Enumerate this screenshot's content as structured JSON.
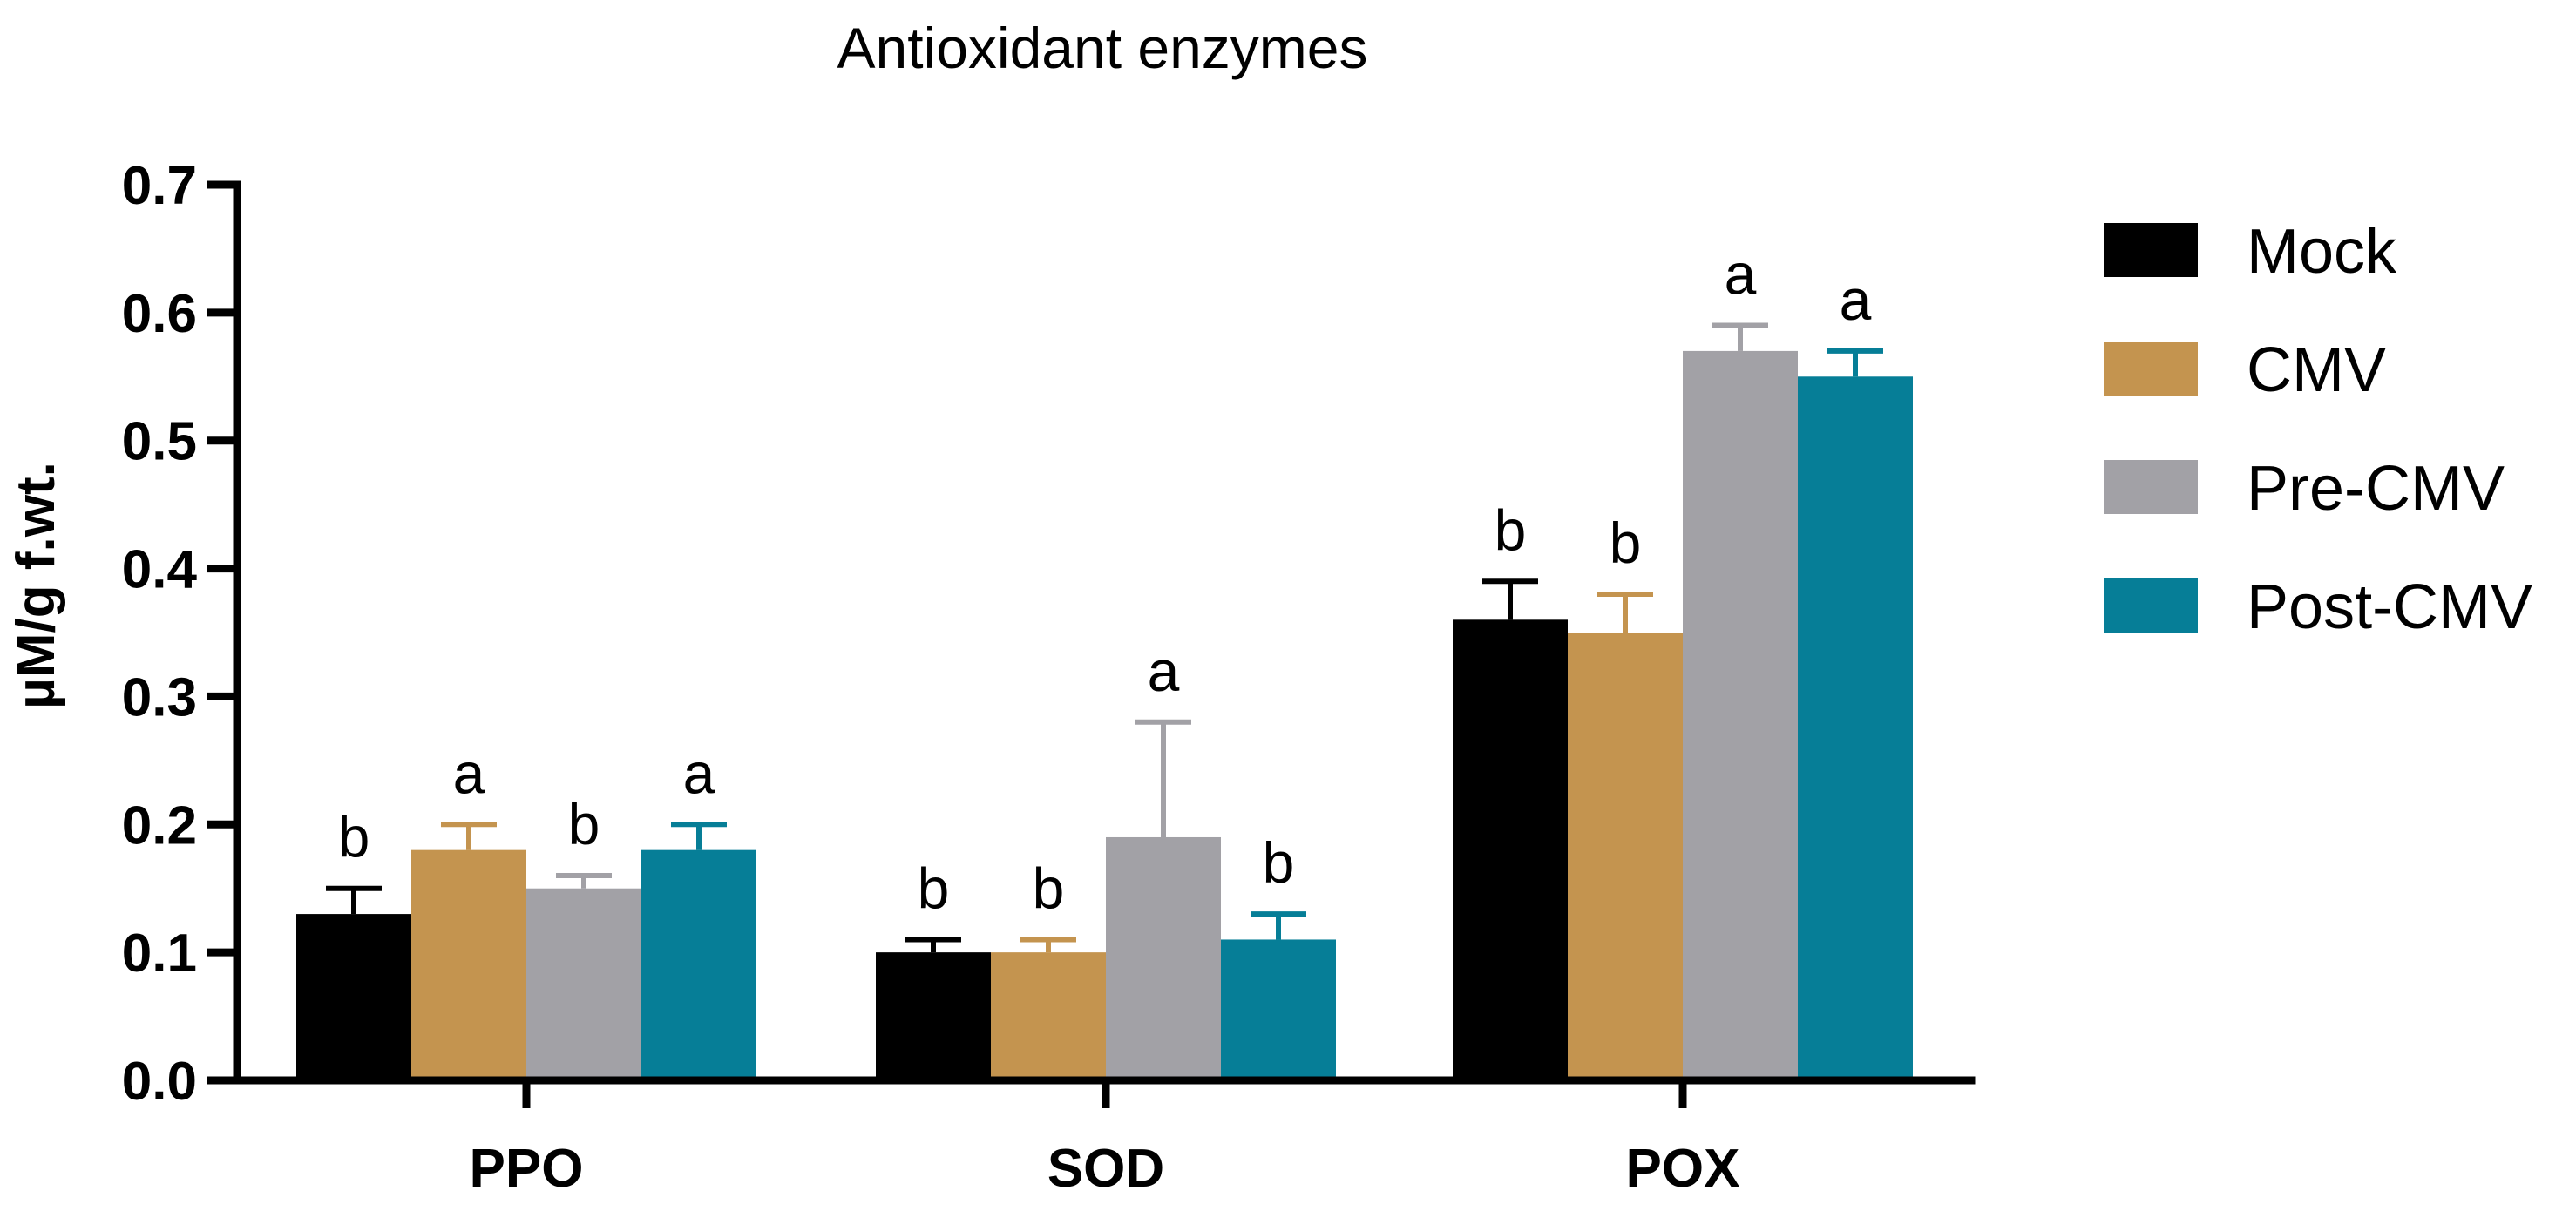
{
  "chart_data": {
    "type": "bar",
    "title": "Antioxidant enzymes",
    "xlabel": "",
    "ylabel": "µM/g f.wt.",
    "ylim": [
      0,
      0.7
    ],
    "yticks": [
      "0.0",
      "0.1",
      "0.2",
      "0.3",
      "0.4",
      "0.5",
      "0.6",
      "0.7"
    ],
    "grid": false,
    "legend_position": "right",
    "categories": [
      "PPO",
      "SOD",
      "POX"
    ],
    "series": [
      {
        "name": "Mock",
        "color": "#000000",
        "values": [
          0.13,
          0.1,
          0.36
        ],
        "errors": [
          0.02,
          0.01,
          0.03
        ],
        "significance": [
          "b",
          "b",
          "b"
        ]
      },
      {
        "name": "CMV",
        "color": "#C4944F",
        "values": [
          0.18,
          0.1,
          0.35
        ],
        "errors": [
          0.02,
          0.01,
          0.03
        ],
        "significance": [
          "a",
          "b",
          "b"
        ]
      },
      {
        "name": "Pre-CMV",
        "color": "#A2A1A6",
        "values": [
          0.15,
          0.19,
          0.57
        ],
        "errors": [
          0.01,
          0.09,
          0.02
        ],
        "significance": [
          "b",
          "a",
          "a"
        ]
      },
      {
        "name": "Post-CMV",
        "color": "#067E97",
        "values": [
          0.18,
          0.11,
          0.55
        ],
        "errors": [
          0.02,
          0.02,
          0.02
        ],
        "significance": [
          "a",
          "b",
          "a"
        ]
      }
    ]
  }
}
